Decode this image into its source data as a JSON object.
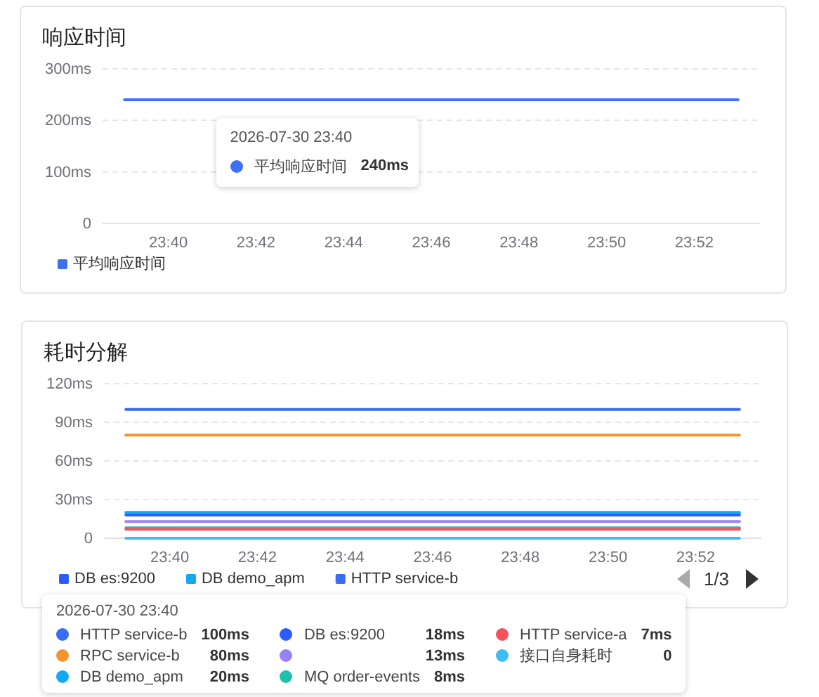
{
  "chart_data": [
    {
      "type": "line",
      "title": "响应时间",
      "categories": [
        null,
        "23:40",
        null,
        "23:42",
        null,
        "23:44",
        null,
        "23:46",
        null,
        "23:48",
        null,
        "23:50",
        null,
        "23:52",
        null
      ],
      "ylim": [
        0,
        300
      ],
      "yticks": [
        0,
        {
          "value": 100,
          "label": "100ms"
        },
        {
          "value": 200,
          "label": "200ms"
        },
        {
          "value": 300,
          "label": "300ms"
        }
      ],
      "grid": "y",
      "legend": "bottom left",
      "series": [
        {
          "name": "平均响应时间",
          "color": "#3d6ff7",
          "values": [
            240,
            240,
            240,
            240,
            240,
            240,
            240,
            240,
            240,
            240,
            240,
            240,
            240,
            240,
            240
          ]
        }
      ],
      "annotations": [
        "2026-07-30 23:40",
        "240ms"
      ]
    },
    {
      "type": "line",
      "title": "耗时分解",
      "categories": [
        null,
        "23:40",
        null,
        "23:42",
        null,
        "23:44",
        null,
        "23:46",
        null,
        "23:48",
        null,
        "23:50",
        null,
        "23:52",
        null
      ],
      "ylim": [
        0,
        120
      ],
      "yticks": [
        0,
        {
          "value": 30,
          "label": "30ms"
        },
        {
          "value": 60,
          "label": "60ms"
        },
        {
          "value": 90,
          "label": "90ms"
        },
        {
          "value": 120,
          "label": "120ms"
        }
      ],
      "grid": "y",
      "legend": "bottom",
      "series": [
        {
          "name": "DB es:9200",
          "color": "#2e5bff",
          "values": [
            18,
            18,
            18,
            18,
            18,
            18,
            18,
            18,
            18,
            18,
            18,
            18,
            18,
            18,
            18
          ]
        },
        {
          "name": "DB demo_apm",
          "color": "#12a9f2",
          "values": [
            20,
            20,
            20,
            20,
            20,
            20,
            20,
            20,
            20,
            20,
            20,
            20,
            20,
            20,
            20
          ]
        },
        {
          "color": "#9a80f5",
          "values": [
            13,
            13,
            13,
            13,
            13,
            13,
            13,
            13,
            13,
            13,
            13,
            13,
            13,
            13,
            13
          ]
        },
        {
          "name": "HTTP service-b",
          "color": "#3a6cf4",
          "values": [
            100,
            100,
            100,
            100,
            100,
            100,
            100,
            100,
            100,
            100,
            100,
            100,
            100,
            100,
            100
          ]
        },
        {
          "name": "RPC service-b",
          "color": "#f5952f",
          "values": [
            80,
            80,
            80,
            80,
            80,
            80,
            80,
            80,
            80,
            80,
            80,
            80,
            80,
            80,
            80
          ]
        },
        {
          "name": "MQ order-events",
          "color": "#1fbfae",
          "values": [
            8,
            8,
            8,
            8,
            8,
            8,
            8,
            8,
            8,
            8,
            8,
            8,
            8,
            8,
            8
          ]
        },
        {
          "name": "HTTP service-a",
          "color": "#f5515f",
          "values": [
            7,
            7,
            7,
            7,
            7,
            7,
            7,
            7,
            7,
            7,
            7,
            7,
            7,
            7,
            7
          ]
        },
        {
          "name": "接口自身耗时",
          "color": "#3dbcf5",
          "values": [
            0,
            0,
            0,
            0,
            0,
            0,
            0,
            0,
            0,
            0,
            0,
            0,
            0,
            0,
            0
          ]
        }
      ],
      "annotations": [
        "2026-07-30 23:40",
        "18ms",
        "20ms",
        "13ms",
        "100ms",
        "80ms",
        "8ms",
        "7ms",
        "0",
        "1/3"
      ]
    }
  ]
}
